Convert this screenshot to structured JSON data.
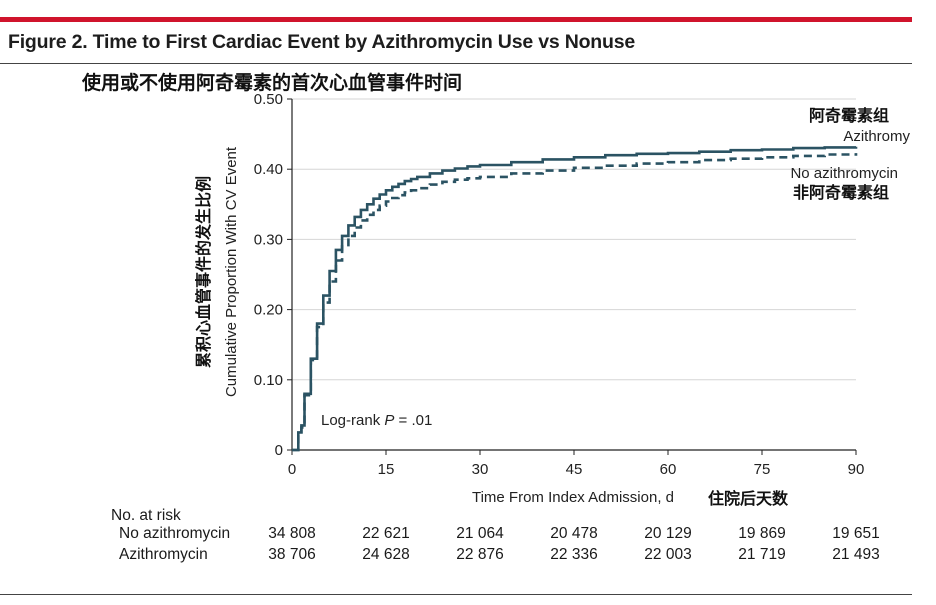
{
  "figure_title": "Figure 2. Time to First Cardiac Event by Azithromycin Use vs Nonuse",
  "chinese_title": "使用或不使用阿奇霉素的首次心血管事件时间",
  "chart_data": {
    "type": "line",
    "title": "Time to First Cardiac Event by Azithromycin Use vs Nonuse",
    "xlabel": "Time From Index Admission, d",
    "xlabel_cn": "住院后天数",
    "ylabel": "Cumulative Proportion With CV Event",
    "ylabel_cn": "累积心血管事件的发生比例",
    "xlim": [
      0,
      90
    ],
    "ylim": [
      0,
      0.5
    ],
    "x_ticks": [
      0,
      15,
      30,
      45,
      60,
      75,
      90
    ],
    "x_tick_labels": [
      "0",
      "15",
      "30",
      "45",
      "60",
      "75",
      "90"
    ],
    "y_ticks": [
      0,
      0.1,
      0.2,
      0.3,
      0.4,
      0.5
    ],
    "y_tick_labels": [
      "0",
      "0.10",
      "0.20",
      "0.30",
      "0.40",
      "0.50"
    ],
    "grid": "horizontal",
    "annotation": {
      "prefix": "Log-rank ",
      "italic": "P",
      "suffix": " = .01"
    },
    "series": [
      {
        "name": "Azithromycin",
        "name_cn": "阿奇霉素组",
        "legend_label": "Azithromy",
        "style": "solid",
        "color": "#2b5363",
        "x": [
          0,
          1,
          1.5,
          2,
          3,
          4,
          5,
          6,
          7,
          8,
          9,
          10,
          11,
          12,
          13,
          14,
          15,
          16,
          17,
          18,
          19,
          20,
          22,
          24,
          26,
          28,
          30,
          35,
          40,
          45,
          50,
          55,
          60,
          65,
          70,
          75,
          80,
          85,
          90
        ],
        "y": [
          0,
          0.025,
          0.035,
          0.08,
          0.13,
          0.18,
          0.22,
          0.255,
          0.285,
          0.305,
          0.32,
          0.332,
          0.342,
          0.35,
          0.358,
          0.364,
          0.37,
          0.375,
          0.379,
          0.383,
          0.386,
          0.389,
          0.394,
          0.398,
          0.401,
          0.404,
          0.406,
          0.41,
          0.414,
          0.417,
          0.42,
          0.422,
          0.423,
          0.425,
          0.427,
          0.428,
          0.43,
          0.431,
          0.432
        ]
      },
      {
        "name": "No azithromycin",
        "name_cn": "非阿奇霉素组",
        "legend_label": "No azithromycin",
        "style": "dashed",
        "color": "#2b5363",
        "x": [
          0,
          1,
          1.5,
          2,
          3,
          4,
          5,
          6,
          7,
          8,
          9,
          10,
          11,
          12,
          13,
          14,
          15,
          16,
          17,
          18,
          19,
          20,
          22,
          24,
          26,
          28,
          30,
          35,
          40,
          45,
          50,
          55,
          60,
          65,
          70,
          75,
          80,
          85,
          90
        ],
        "y": [
          0,
          0.022,
          0.032,
          0.078,
          0.128,
          0.175,
          0.21,
          0.24,
          0.27,
          0.29,
          0.305,
          0.317,
          0.327,
          0.335,
          0.342,
          0.348,
          0.354,
          0.359,
          0.363,
          0.367,
          0.37,
          0.373,
          0.378,
          0.382,
          0.385,
          0.387,
          0.389,
          0.394,
          0.398,
          0.402,
          0.405,
          0.408,
          0.41,
          0.413,
          0.415,
          0.417,
          0.419,
          0.421,
          0.423
        ]
      }
    ]
  },
  "risk_table": {
    "header": "No. at risk",
    "rows": [
      {
        "label": "No azithromycin",
        "values": [
          "34 808",
          "22 621",
          "21 064",
          "20 478",
          "20 129",
          "19 869",
          "19 651"
        ]
      },
      {
        "label": "Azithromycin",
        "values": [
          "38 706",
          "24 628",
          "22 876",
          "22 336",
          "22 003",
          "21 719",
          "21 493"
        ]
      }
    ]
  }
}
